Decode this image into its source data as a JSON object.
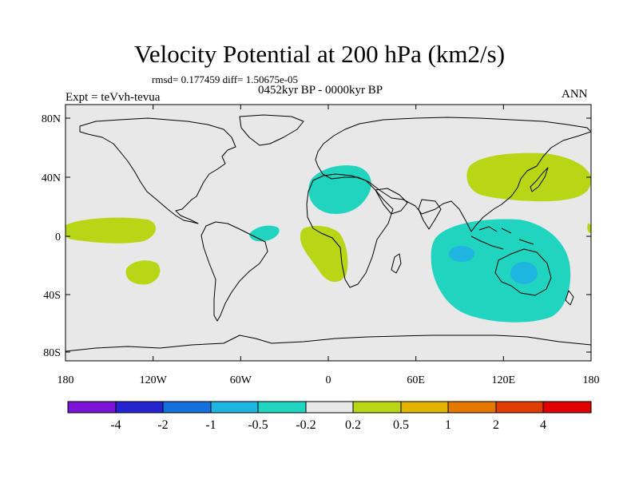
{
  "title": "Velocity Potential at 200 hPa (km2/s)",
  "stats_line": "rmsd= 0.177459 diff= 1.50675e-05",
  "period": "0452kyr BP - 0000kyr BP",
  "experiment": "Expt = teVvh-tevua",
  "season": "ANN",
  "colors": {
    "background": "#e8e8e8",
    "positive_weak": "#b8d616",
    "negative_weak": "#20d4c0",
    "negative_mid": "#20b4e0"
  },
  "colorbar": {
    "labels": [
      "-4",
      "-2",
      "-1",
      "-0.5",
      "-0.2",
      "0.2",
      "0.5",
      "1",
      "2",
      "4"
    ],
    "colors": [
      "#7c14d8",
      "#2424d0",
      "#1470dc",
      "#20b4e0",
      "#20d4c0",
      "#e8e8e8",
      "#b8d616",
      "#e0b400",
      "#e47800",
      "#e03c00",
      "#e00000"
    ]
  },
  "map": {
    "lon_ticks": [
      "180",
      "120W",
      "60W",
      "0",
      "60E",
      "120E",
      "180"
    ],
    "lat_ticks": [
      "80N",
      "40N",
      "0",
      "40S",
      "80S"
    ]
  },
  "chart_data": {
    "type": "map",
    "projection": "cylindrical-equidistant",
    "lon_range": [
      -180,
      180
    ],
    "lat_range": [
      -90,
      90
    ],
    "contour_levels": [
      -4,
      -2,
      -1,
      -0.5,
      -0.2,
      0.2,
      0.5,
      1,
      2,
      4
    ],
    "regions": [
      {
        "sign": "positive",
        "bin": "0.2 to 0.5",
        "location": "North Pacific near Japan"
      },
      {
        "sign": "positive",
        "bin": "0.2 to 0.5",
        "location": "Equatorial eastern Pacific"
      },
      {
        "sign": "positive",
        "bin": "0.2 to 0.5",
        "location": "Southeast Pacific"
      },
      {
        "sign": "positive",
        "bin": "0.2 to 0.5",
        "location": "Tropical South Atlantic"
      },
      {
        "sign": "negative",
        "bin": "-0.5 to -0.2",
        "location": "North Africa and Mediterranean"
      },
      {
        "sign": "negative",
        "bin": "-0.5 to -0.2",
        "location": "Northeast Brazil"
      },
      {
        "sign": "negative",
        "bin": "-0.5 to -0.2",
        "location": "Indian Ocean, Maritime Continent and Australia"
      },
      {
        "sign": "negative",
        "bin": "-1 to -0.5",
        "location": "Eastern Indian Ocean"
      },
      {
        "sign": "negative",
        "bin": "-1 to -0.5",
        "location": "Northern Australia"
      }
    ]
  }
}
